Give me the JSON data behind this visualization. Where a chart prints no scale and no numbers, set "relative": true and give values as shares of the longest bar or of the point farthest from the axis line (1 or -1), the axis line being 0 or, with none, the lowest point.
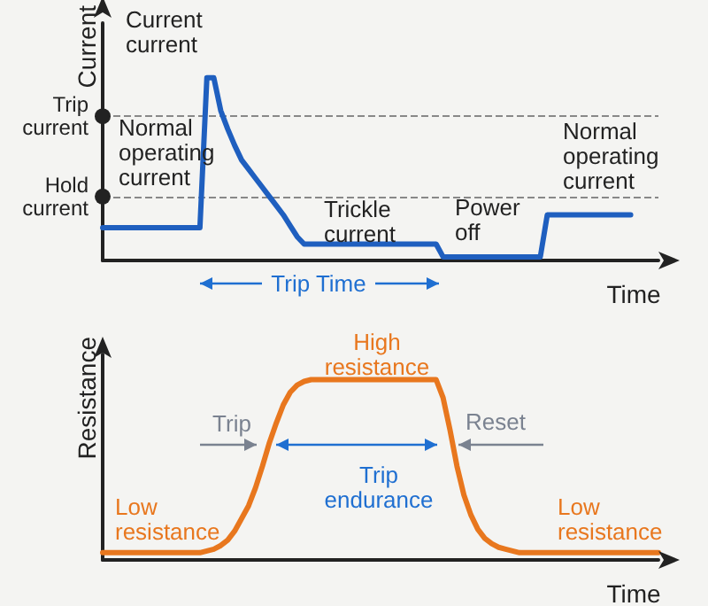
{
  "chart_data": [
    {
      "type": "line",
      "relative": true,
      "ylabel": "Current",
      "xlabel": "Time",
      "marker": "none",
      "line_style": "solid",
      "categories": [
        null,
        null,
        null,
        null,
        null,
        null,
        null,
        null,
        null,
        null,
        null,
        null,
        null,
        null,
        null,
        null,
        null,
        null,
        null,
        null,
        null,
        null,
        null,
        null,
        null,
        null,
        null,
        null,
        null,
        null,
        null,
        null,
        null,
        null,
        null,
        null,
        null,
        null,
        null,
        null,
        null,
        null,
        null,
        null,
        null,
        null,
        null,
        null,
        null,
        null,
        null,
        null,
        null,
        null,
        null,
        null,
        null,
        null,
        null,
        null,
        null,
        null,
        null,
        null,
        null,
        null,
        null,
        null,
        null,
        null,
        null,
        null,
        null,
        null,
        null,
        null,
        null,
        null,
        null,
        null,
        null
      ],
      "series": [
        {
          "color": "#1f5fbf",
          "values": [
            0.18,
            0.18,
            0.18,
            0.18,
            0.18,
            0.18,
            0.18,
            0.18,
            0.18,
            0.18,
            0.18,
            0.18,
            0.18,
            0.18,
            0.18,
            1,
            1,
            0.82,
            0.72,
            0.63,
            0.55,
            0.5,
            0.45,
            0.4,
            0.35,
            0.3,
            0.25,
            0.19,
            0.13,
            0.09,
            0.09,
            0.09,
            0.09,
            0.09,
            0.09,
            0.09,
            0.09,
            0.09,
            0.09,
            0.09,
            0.09,
            0.09,
            0.09,
            0.09,
            0.09,
            0.09,
            0.09,
            0.09,
            0.09,
            0.02,
            0.02,
            0.02,
            0.02,
            0.02,
            0.02,
            0.02,
            0.02,
            0.02,
            0.02,
            0.02,
            0.02,
            0.02,
            0.02,
            0.02,
            0.25,
            0.25,
            0.25,
            0.25,
            0.25,
            0.25,
            0.25,
            0.25,
            0.25,
            0.25,
            0.25,
            0.25,
            0.25,
            null,
            null,
            null,
            null
          ]
        }
      ],
      "ref_lines": [
        {
          "axis": "y",
          "value": 0.79,
          "label": "Trip\ncurrent",
          "color": "#888888",
          "line_style": "dashed"
        },
        {
          "axis": "y",
          "value": 0.35,
          "label": "Hold\ncurrent",
          "color": "#888888",
          "line_style": "dashed"
        }
      ],
      "annotations": [
        "Current\ncurrent",
        "Normal\noperating\ncurrent",
        "Trickle\ncurrent",
        "Power\noff",
        "Normal\noperating\ncurrent",
        "Trip Time"
      ]
    },
    {
      "type": "line",
      "relative": true,
      "ylabel": "Resistance",
      "xlabel": "Time",
      "marker": "none",
      "line_style": "solid",
      "categories": [
        null,
        null,
        null,
        null,
        null,
        null,
        null,
        null,
        null,
        null,
        null,
        null,
        null,
        null,
        null,
        null,
        null,
        null,
        null,
        null,
        null,
        null,
        null,
        null,
        null,
        null,
        null,
        null,
        null,
        null,
        null,
        null,
        null,
        null,
        null,
        null,
        null,
        null,
        null,
        null,
        null,
        null,
        null,
        null,
        null,
        null,
        null,
        null,
        null,
        null,
        null,
        null,
        null,
        null,
        null,
        null,
        null,
        null,
        null,
        null,
        null,
        null,
        null,
        null,
        null,
        null,
        null,
        null,
        null,
        null,
        null,
        null,
        null,
        null,
        null,
        null,
        null,
        null,
        null,
        null,
        null
      ],
      "series": [
        {
          "color": "#e8771e",
          "values": [
            0.04,
            0.04,
            0.04,
            0.04,
            0.04,
            0.04,
            0.04,
            0.04,
            0.04,
            0.04,
            0.04,
            0.04,
            0.04,
            0.04,
            0.04,
            0.05,
            0.06,
            0.08,
            0.11,
            0.16,
            0.23,
            0.3,
            0.4,
            0.52,
            0.65,
            0.76,
            0.86,
            0.93,
            0.97,
            0.99,
            1,
            1,
            1,
            1,
            1,
            1,
            1,
            1,
            1,
            1,
            1,
            1,
            1,
            1,
            1,
            1,
            1,
            1,
            1,
            0.9,
            0.72,
            0.52,
            0.36,
            0.25,
            0.17,
            0.12,
            0.09,
            0.07,
            0.06,
            0.05,
            0.04,
            0.04,
            0.04,
            0.04,
            0.04,
            0.04,
            0.04,
            0.04,
            0.04,
            0.04,
            0.04,
            0.04,
            0.04,
            0.04,
            0.04,
            0.04,
            0.04,
            0.04,
            0.04,
            0.04,
            0.04
          ]
        }
      ],
      "annotations": [
        "Low\nresistance",
        "Trip",
        "High\nresistance",
        "Trip\nendurance",
        "Reset",
        "Low\nresistance"
      ]
    }
  ]
}
